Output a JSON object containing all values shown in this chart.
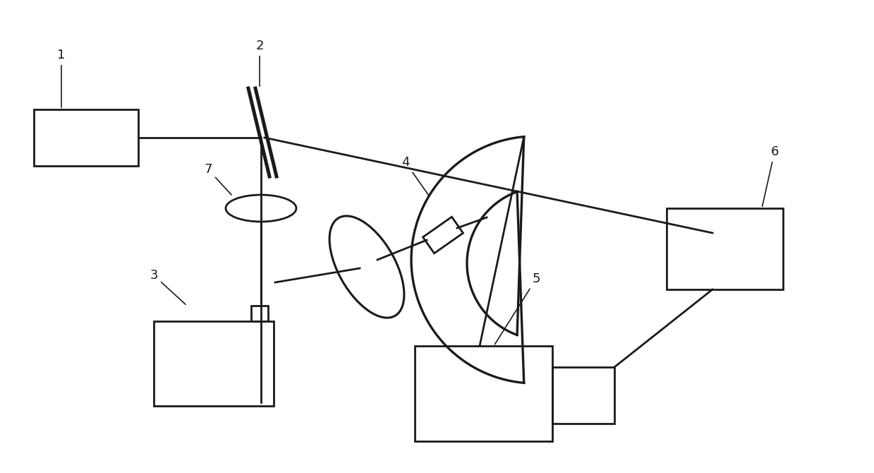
{
  "bg_color": "#ffffff",
  "line_color": "#1a1a1a",
  "lw": 2.0,
  "label_fontsize": 13
}
